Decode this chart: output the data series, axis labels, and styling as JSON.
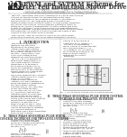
{
  "title_line1": "of SPWM and SVPWM Scheme for",
  "title_line2": "Inverter Fed Induction Motor Drive",
  "pdf_label": "PDF",
  "background_color": "#ffffff",
  "text_color": "#333333",
  "gray_color": "#777777",
  "pdf_bg": "#1c1c1c",
  "pdf_text": "#ffffff",
  "header_line_color": "#999999",
  "dark_line": "#555555"
}
